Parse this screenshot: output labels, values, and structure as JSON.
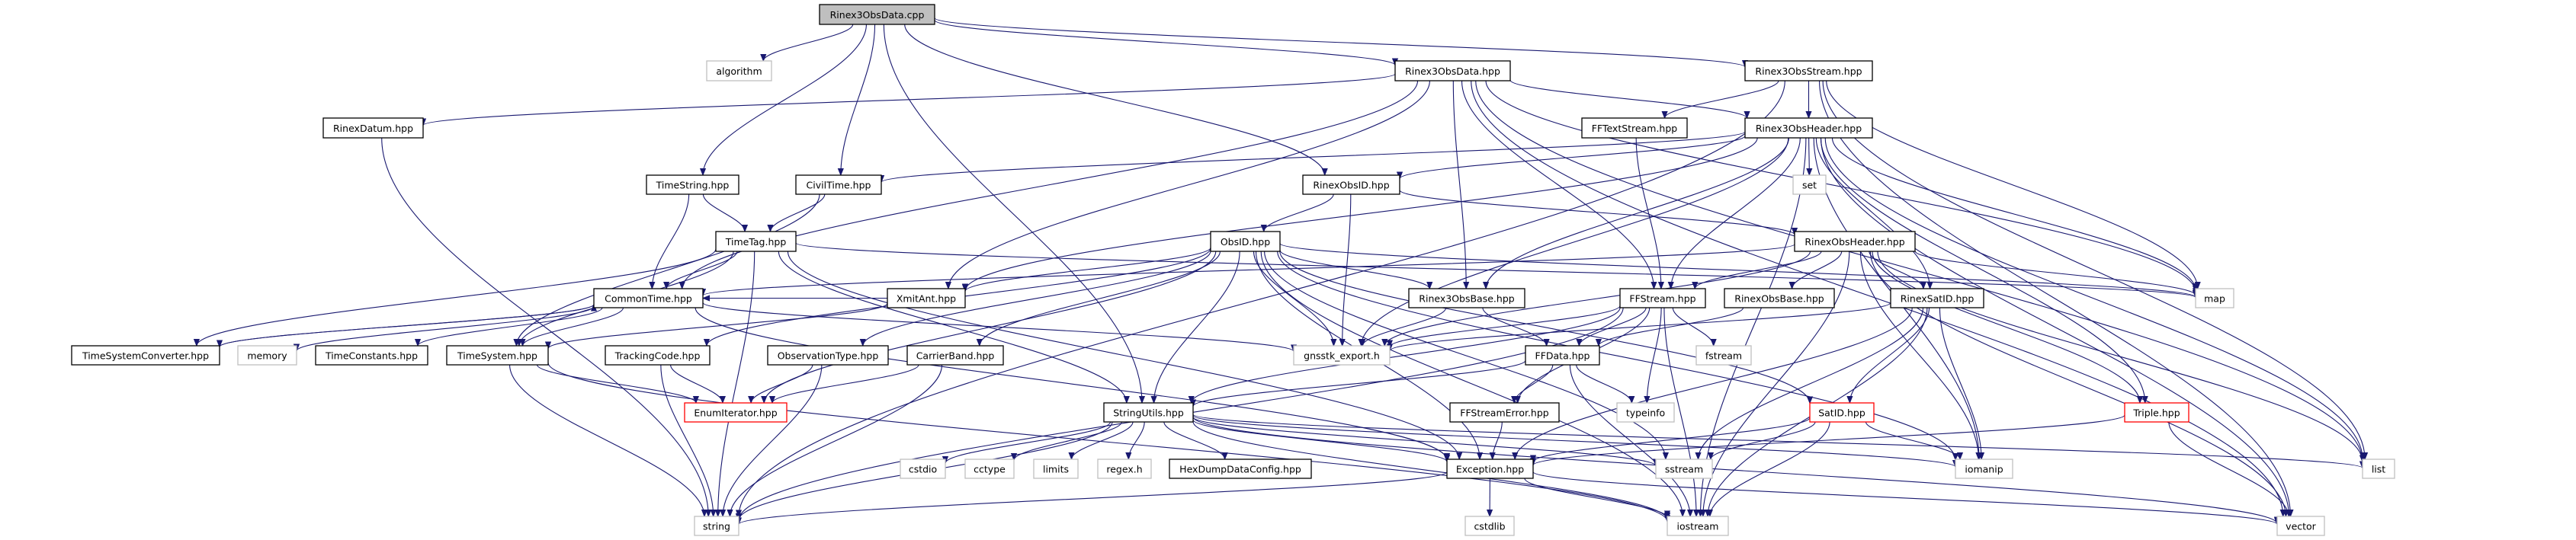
{
  "colors": {
    "edge": "#191970",
    "root_fill": "#bfbfbf",
    "file_border": "#000000",
    "system_border": "#bfbfbf",
    "truncated_border": "#ff0000"
  },
  "nodes": [
    {
      "id": "cpp",
      "label": "Rinex3ObsData.cpp",
      "kind": "root"
    },
    {
      "id": "algorithm",
      "label": "algorithm",
      "kind": "system"
    },
    {
      "id": "r3data",
      "label": "Rinex3ObsData.hpp",
      "kind": "file"
    },
    {
      "id": "r3stream",
      "label": "Rinex3ObsStream.hpp",
      "kind": "file"
    },
    {
      "id": "rinexdatum",
      "label": "RinexDatum.hpp",
      "kind": "file"
    },
    {
      "id": "fftextstream",
      "label": "FFTextStream.hpp",
      "kind": "file"
    },
    {
      "id": "r3header",
      "label": "Rinex3ObsHeader.hpp",
      "kind": "file"
    },
    {
      "id": "timestring",
      "label": "TimeString.hpp",
      "kind": "file"
    },
    {
      "id": "civiltime",
      "label": "CivilTime.hpp",
      "kind": "file"
    },
    {
      "id": "rinexobsid",
      "label": "RinexObsID.hpp",
      "kind": "file"
    },
    {
      "id": "set",
      "label": "set",
      "kind": "system"
    },
    {
      "id": "timetag",
      "label": "TimeTag.hpp",
      "kind": "file"
    },
    {
      "id": "obsid",
      "label": "ObsID.hpp",
      "kind": "file"
    },
    {
      "id": "rinexobsheader",
      "label": "RinexObsHeader.hpp",
      "kind": "file"
    },
    {
      "id": "commontime",
      "label": "CommonTime.hpp",
      "kind": "file"
    },
    {
      "id": "xmitant",
      "label": "XmitAnt.hpp",
      "kind": "file"
    },
    {
      "id": "r3obsbase",
      "label": "Rinex3ObsBase.hpp",
      "kind": "file"
    },
    {
      "id": "ffstream",
      "label": "FFStream.hpp",
      "kind": "file"
    },
    {
      "id": "rinexobsbase",
      "label": "RinexObsBase.hpp",
      "kind": "file"
    },
    {
      "id": "rinexsatid",
      "label": "RinexSatID.hpp",
      "kind": "file"
    },
    {
      "id": "map",
      "label": "map",
      "kind": "system"
    },
    {
      "id": "tsconverter",
      "label": "TimeSystemConverter.hpp",
      "kind": "file"
    },
    {
      "id": "memory",
      "label": "memory",
      "kind": "system"
    },
    {
      "id": "timeconstants",
      "label": "TimeConstants.hpp",
      "kind": "file"
    },
    {
      "id": "timesystem",
      "label": "TimeSystem.hpp",
      "kind": "file"
    },
    {
      "id": "trackingcode",
      "label": "TrackingCode.hpp",
      "kind": "file"
    },
    {
      "id": "obstype",
      "label": "ObservationType.hpp",
      "kind": "file"
    },
    {
      "id": "carrierband",
      "label": "CarrierBand.hpp",
      "kind": "file"
    },
    {
      "id": "gnsstkexport",
      "label": "gnsstk_export.h",
      "kind": "system"
    },
    {
      "id": "ffdata",
      "label": "FFData.hpp",
      "kind": "file"
    },
    {
      "id": "fstream",
      "label": "fstream",
      "kind": "system"
    },
    {
      "id": "enumiterator",
      "label": "EnumIterator.hpp",
      "kind": "truncated"
    },
    {
      "id": "stringutils",
      "label": "StringUtils.hpp",
      "kind": "file"
    },
    {
      "id": "ffstreamerror",
      "label": "FFStreamError.hpp",
      "kind": "file"
    },
    {
      "id": "typeinfo",
      "label": "typeinfo",
      "kind": "system"
    },
    {
      "id": "satid",
      "label": "SatID.hpp",
      "kind": "truncated"
    },
    {
      "id": "triple",
      "label": "Triple.hpp",
      "kind": "truncated"
    },
    {
      "id": "cstdio",
      "label": "cstdio",
      "kind": "system"
    },
    {
      "id": "cctype",
      "label": "cctype",
      "kind": "system"
    },
    {
      "id": "limits",
      "label": "limits",
      "kind": "system"
    },
    {
      "id": "regex",
      "label": "regex.h",
      "kind": "system"
    },
    {
      "id": "hexdump",
      "label": "HexDumpDataConfig.hpp",
      "kind": "file"
    },
    {
      "id": "exception",
      "label": "Exception.hpp",
      "kind": "file"
    },
    {
      "id": "sstream",
      "label": "sstream",
      "kind": "system"
    },
    {
      "id": "iomanip",
      "label": "iomanip",
      "kind": "system"
    },
    {
      "id": "list",
      "label": "list",
      "kind": "system"
    },
    {
      "id": "string",
      "label": "string",
      "kind": "system"
    },
    {
      "id": "cstdlib",
      "label": "cstdlib",
      "kind": "system"
    },
    {
      "id": "iostream",
      "label": "iostream",
      "kind": "system"
    },
    {
      "id": "vector",
      "label": "vector",
      "kind": "system"
    }
  ],
  "edges": [
    [
      "cpp",
      "algorithm"
    ],
    [
      "cpp",
      "r3data"
    ],
    [
      "cpp",
      "r3stream"
    ],
    [
      "cpp",
      "timestring"
    ],
    [
      "cpp",
      "civiltime"
    ],
    [
      "cpp",
      "rinexobsid"
    ],
    [
      "cpp",
      "stringutils"
    ],
    [
      "r3data",
      "rinexdatum"
    ],
    [
      "r3data",
      "r3header"
    ],
    [
      "r3data",
      "commontime"
    ],
    [
      "r3data",
      "xmitant"
    ],
    [
      "r3data",
      "r3obsbase"
    ],
    [
      "r3data",
      "ffstream"
    ],
    [
      "r3data",
      "map"
    ],
    [
      "r3data",
      "vector"
    ],
    [
      "r3data",
      "list"
    ],
    [
      "r3stream",
      "r3header"
    ],
    [
      "r3stream",
      "fftextstream"
    ],
    [
      "r3stream",
      "string"
    ],
    [
      "r3stream",
      "map"
    ],
    [
      "r3stream",
      "list"
    ],
    [
      "r3stream",
      "vector"
    ],
    [
      "fftextstream",
      "ffstream"
    ],
    [
      "r3header",
      "set"
    ],
    [
      "r3header",
      "civiltime"
    ],
    [
      "r3header",
      "rinexobsid"
    ],
    [
      "r3header",
      "ffstream"
    ],
    [
      "r3header",
      "r3obsbase"
    ],
    [
      "r3header",
      "xmitant"
    ],
    [
      "r3header",
      "rinexsatid"
    ],
    [
      "r3header",
      "triple"
    ],
    [
      "r3header",
      "map"
    ],
    [
      "r3header",
      "list"
    ],
    [
      "r3header",
      "vector"
    ],
    [
      "r3header",
      "iostream"
    ],
    [
      "r3header",
      "iomanip"
    ],
    [
      "r3header",
      "gnsstkexport"
    ],
    [
      "rinexdatum",
      "string"
    ],
    [
      "timestring",
      "timetag"
    ],
    [
      "timestring",
      "commontime"
    ],
    [
      "civiltime",
      "timetag"
    ],
    [
      "civiltime",
      "timesystem"
    ],
    [
      "rinexobsid",
      "obsid"
    ],
    [
      "rinexobsid",
      "gnsstkexport"
    ],
    [
      "rinexobsid",
      "rinexobsheader"
    ],
    [
      "rinexobsheader",
      "commontime"
    ],
    [
      "rinexobsheader",
      "ffstream"
    ],
    [
      "rinexobsheader",
      "rinexobsbase"
    ],
    [
      "rinexobsheader",
      "rinexsatid"
    ],
    [
      "rinexobsheader",
      "triple"
    ],
    [
      "rinexobsheader",
      "map"
    ],
    [
      "rinexobsheader",
      "list"
    ],
    [
      "rinexobsheader",
      "vector"
    ],
    [
      "rinexobsheader",
      "iostream"
    ],
    [
      "rinexobsheader",
      "iomanip"
    ],
    [
      "rinexobsheader",
      "gnsstkexport"
    ],
    [
      "timetag",
      "commontime"
    ],
    [
      "timetag",
      "timesystem"
    ],
    [
      "timetag",
      "tsconverter"
    ],
    [
      "timetag",
      "stringutils"
    ],
    [
      "timetag",
      "map"
    ],
    [
      "timetag",
      "string"
    ],
    [
      "timetag",
      "exception"
    ],
    [
      "obsid",
      "xmitant"
    ],
    [
      "obsid",
      "r3obsbase"
    ],
    [
      "obsid",
      "trackingcode"
    ],
    [
      "obsid",
      "obstype"
    ],
    [
      "obsid",
      "carrierband"
    ],
    [
      "obsid",
      "gnsstkexport"
    ],
    [
      "obsid",
      "stringutils"
    ],
    [
      "obsid",
      "exception"
    ],
    [
      "obsid",
      "iostream"
    ],
    [
      "obsid",
      "sstream"
    ],
    [
      "obsid",
      "iomanip"
    ],
    [
      "obsid",
      "map"
    ],
    [
      "obsid",
      "satid"
    ],
    [
      "obsid",
      "enumiterator"
    ],
    [
      "commontime",
      "tsconverter"
    ],
    [
      "commontime",
      "memory"
    ],
    [
      "commontime",
      "timeconstants"
    ],
    [
      "commontime",
      "timesystem"
    ],
    [
      "commontime",
      "exception"
    ],
    [
      "commontime",
      "gnsstkexport"
    ],
    [
      "tsconverter",
      "commontime"
    ],
    [
      "xmitant",
      "commontime"
    ],
    [
      "xmitant",
      "timesystem"
    ],
    [
      "timesystem",
      "enumiterator"
    ],
    [
      "timesystem",
      "string"
    ],
    [
      "timesystem",
      "iostream"
    ],
    [
      "trackingcode",
      "enumiterator"
    ],
    [
      "trackingcode",
      "string"
    ],
    [
      "obstype",
      "enumiterator"
    ],
    [
      "obstype",
      "string"
    ],
    [
      "carrierband",
      "enumiterator"
    ],
    [
      "carrierband",
      "string"
    ],
    [
      "r3obsbase",
      "gnsstkexport"
    ],
    [
      "r3obsbase",
      "ffdata"
    ],
    [
      "rinexobsbase",
      "ffdata"
    ],
    [
      "ffstream",
      "ffdata"
    ],
    [
      "ffstream",
      "gnsstkexport"
    ],
    [
      "ffstream",
      "fstream"
    ],
    [
      "ffstream",
      "typeinfo"
    ],
    [
      "ffstream",
      "stringutils"
    ],
    [
      "ffstream",
      "ffstreamerror"
    ],
    [
      "ffstream",
      "iostream"
    ],
    [
      "ffstream",
      "string"
    ],
    [
      "ffdata",
      "stringutils"
    ],
    [
      "ffdata",
      "ffstreamerror"
    ],
    [
      "ffdata",
      "typeinfo"
    ],
    [
      "ffdata",
      "iostream"
    ],
    [
      "ffstreamerror",
      "exception"
    ],
    [
      "stringutils",
      "cstdio"
    ],
    [
      "stringutils",
      "cctype"
    ],
    [
      "stringutils",
      "limits"
    ],
    [
      "stringutils",
      "regex"
    ],
    [
      "stringutils",
      "hexdump"
    ],
    [
      "stringutils",
      "exception"
    ],
    [
      "stringutils",
      "sstream"
    ],
    [
      "stringutils",
      "iostream"
    ],
    [
      "stringutils",
      "iomanip"
    ],
    [
      "stringutils",
      "list"
    ],
    [
      "stringutils",
      "string"
    ],
    [
      "stringutils",
      "vector"
    ],
    [
      "exception",
      "cstdlib"
    ],
    [
      "exception",
      "string"
    ],
    [
      "exception",
      "iostream"
    ],
    [
      "exception",
      "vector"
    ],
    [
      "rinexsatid",
      "satid"
    ],
    [
      "rinexsatid",
      "iomanip"
    ],
    [
      "rinexsatid",
      "iostream"
    ],
    [
      "rinexsatid",
      "sstream"
    ],
    [
      "rinexsatid",
      "exception"
    ],
    [
      "rinexsatid",
      "gnsstkexport"
    ],
    [
      "satid",
      "iomanip"
    ],
    [
      "satid",
      "iostream"
    ],
    [
      "satid",
      "sstream"
    ],
    [
      "satid",
      "exception"
    ],
    [
      "triple",
      "exception"
    ],
    [
      "triple",
      "vector"
    ]
  ]
}
